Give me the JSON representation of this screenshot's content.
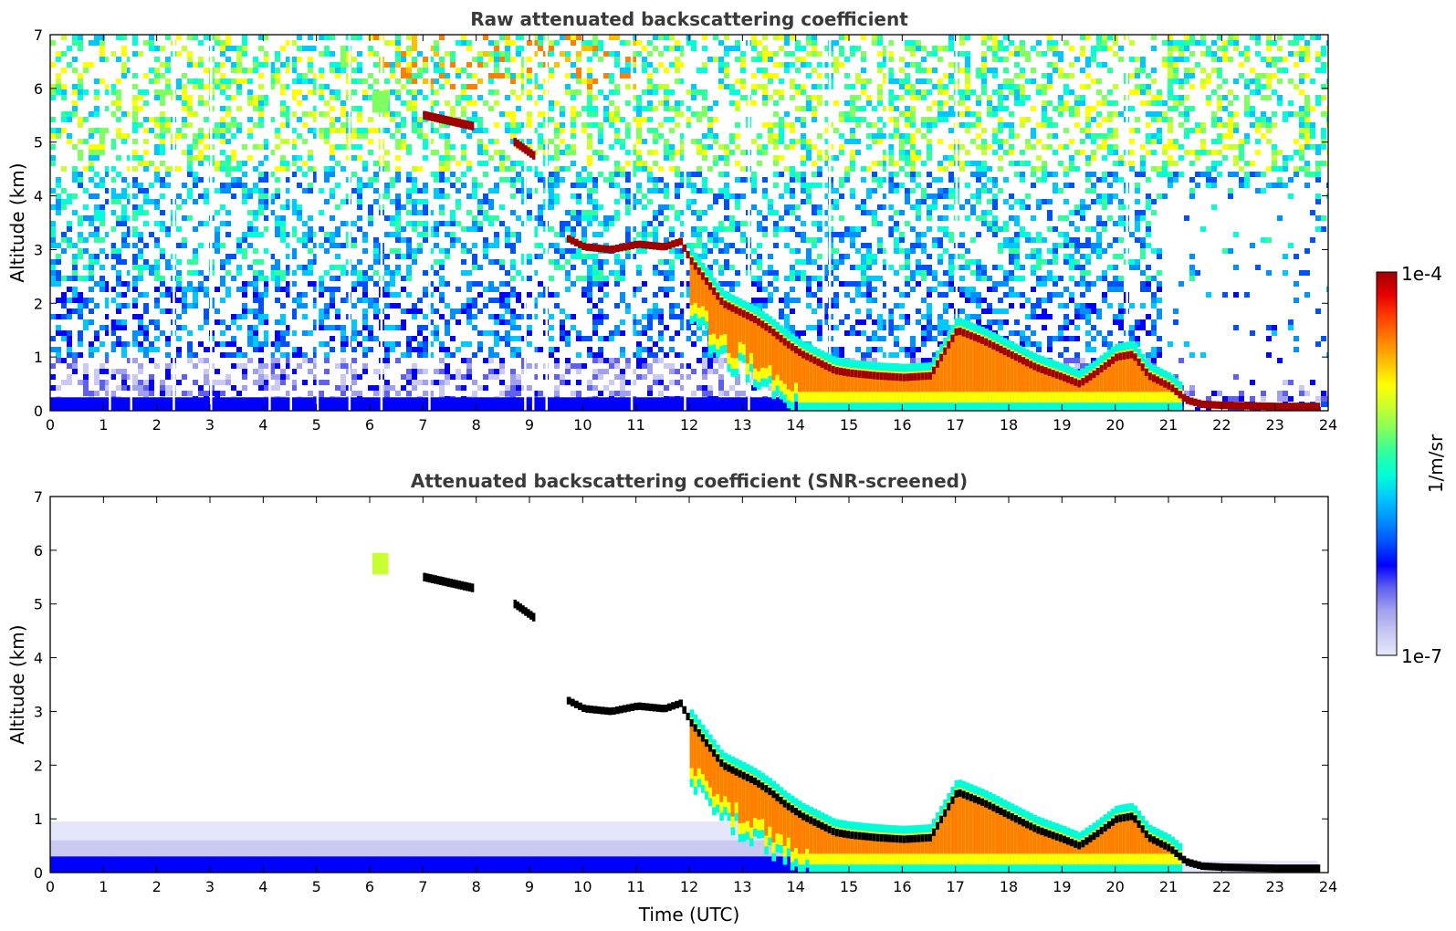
{
  "chart_data": [
    {
      "type": "heatmap",
      "title": "Raw attenuated backscattering coefficient",
      "xlabel": "",
      "ylabel": "Altitude (km)",
      "xlim": [
        0,
        24
      ],
      "ylim": [
        0,
        7
      ],
      "xticks": [
        "0",
        "1",
        "2",
        "3",
        "4",
        "5",
        "6",
        "7",
        "8",
        "9",
        "10",
        "11",
        "12",
        "13",
        "14",
        "15",
        "16",
        "17",
        "18",
        "19",
        "20",
        "21",
        "22",
        "23",
        "24"
      ],
      "yticks": [
        "0",
        "1",
        "2",
        "3",
        "4",
        "5",
        "6",
        "7"
      ],
      "screened": false
    },
    {
      "type": "heatmap",
      "title": "Attenuated backscattering coefficient (SNR-screened)",
      "xlabel": "Time (UTC)",
      "ylabel": "Altitude (km)",
      "xlim": [
        0,
        24
      ],
      "ylim": [
        0,
        7
      ],
      "xticks": [
        "0",
        "1",
        "2",
        "3",
        "4",
        "5",
        "6",
        "7",
        "8",
        "9",
        "10",
        "11",
        "12",
        "13",
        "14",
        "15",
        "16",
        "17",
        "18",
        "19",
        "20",
        "21",
        "22",
        "23",
        "24"
      ],
      "yticks": [
        "0",
        "1",
        "2",
        "3",
        "4",
        "5",
        "6",
        "7"
      ],
      "screened": true
    }
  ],
  "colorbar": {
    "label": "1/m/sr",
    "max_label": "1e-4",
    "min_label": "1e-7",
    "scale": "log",
    "colors": [
      "#e6e6fa",
      "#c9c9f2",
      "#a0a0ee",
      "#6060f0",
      "#0000ff",
      "#0050ff",
      "#0090ff",
      "#00c8ff",
      "#00ffd8",
      "#30ffa0",
      "#80ff60",
      "#c8ff30",
      "#ffff00",
      "#ffc000",
      "#ff8000",
      "#ff4000",
      "#e60000",
      "#a00000"
    ]
  },
  "features": {
    "layer_time_h": [
      9.7,
      10,
      10.5,
      11,
      11.5,
      11.8,
      12,
      12.3,
      12.6,
      12.9,
      13.2,
      13.5,
      13.8,
      14.1,
      14.4,
      14.7,
      15,
      15.5,
      16,
      16.5,
      17,
      17.5,
      18,
      18.5,
      19,
      19.3,
      19.6,
      20,
      20.3,
      20.6,
      21,
      21.3,
      21.6,
      22,
      23,
      23.8
    ],
    "layer_alt_km": [
      3.2,
      3.05,
      3.0,
      3.1,
      3.05,
      3.15,
      2.8,
      2.4,
      2.0,
      1.85,
      1.7,
      1.5,
      1.25,
      1.05,
      0.9,
      0.75,
      0.7,
      0.65,
      0.62,
      0.65,
      1.5,
      1.3,
      1.05,
      0.8,
      0.62,
      0.5,
      0.7,
      1.0,
      1.05,
      0.65,
      0.45,
      0.2,
      0.12,
      0.1,
      0.08,
      0.08
    ],
    "high_cloud_segments": [
      {
        "t0": 7.0,
        "t1": 7.9,
        "a0": 5.5,
        "a1": 5.3
      },
      {
        "t0": 8.7,
        "t1": 9.1,
        "a0": 5.0,
        "a1": 4.72
      }
    ]
  }
}
